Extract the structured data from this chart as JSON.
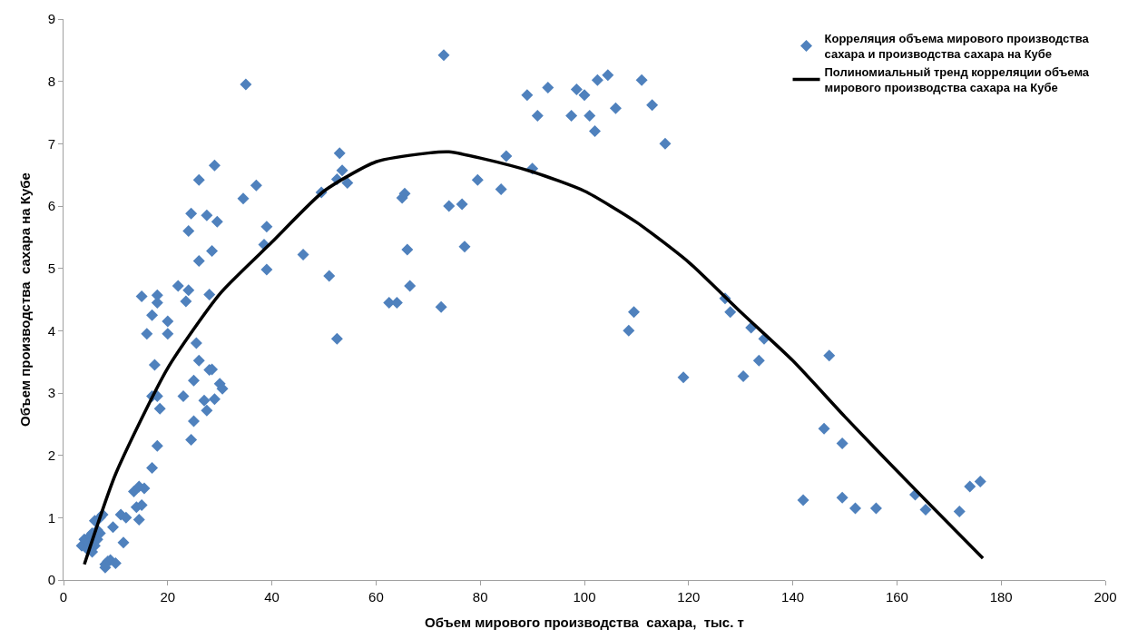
{
  "chart_data": {
    "type": "scatter",
    "xlabel": "Объем мирового производства  сахара,  тыс. т",
    "ylabel": "Объем производства  сахара на Кубе",
    "xlim": [
      0,
      200
    ],
    "xticks": [
      0,
      20,
      40,
      60,
      80,
      100,
      120,
      140,
      160,
      180,
      200
    ],
    "ylim": [
      0,
      9
    ],
    "yticks": [
      0,
      1,
      2,
      3,
      4,
      5,
      6,
      7,
      8,
      9
    ],
    "legend": "top right",
    "marker": "diamond",
    "series": [
      {
        "name": "Корреляция объема мирового производства сахара и производства сахара на Кубе",
        "color": "#4f81bd",
        "x": [
          3.5,
          4,
          4.5,
          5,
          5.5,
          5,
          6,
          6.5,
          6,
          7,
          7.5,
          6.5,
          7,
          5.5,
          8,
          8.5,
          9,
          10,
          8,
          9.5,
          11,
          11.5,
          12,
          13.5,
          14,
          14.5,
          14.5,
          15,
          15.5,
          16,
          15,
          17,
          17,
          17.5,
          18,
          18,
          18.5,
          17,
          18,
          18,
          20,
          20,
          22,
          23,
          23.5,
          24,
          24,
          24.5,
          24.5,
          25,
          25,
          25.5,
          26,
          26,
          26,
          27,
          27.5,
          27.5,
          28,
          28,
          28.5,
          28.5,
          29,
          29,
          29.5,
          30,
          30.5,
          34.5,
          35,
          37,
          38.5,
          39,
          39,
          46,
          49.5,
          51,
          52.5,
          52.5,
          53,
          53.5,
          54.5,
          62.5,
          64,
          65,
          65.5,
          66,
          66.5,
          72.5,
          73,
          74,
          76.5,
          77,
          79.5,
          84,
          85,
          89,
          90,
          91,
          93,
          97.5,
          98.5,
          100,
          101,
          102,
          102.5,
          104.5,
          106,
          111,
          113,
          115.5,
          108.5,
          109.5,
          119,
          127,
          128,
          130.5,
          132,
          133.5,
          134.5,
          142,
          146,
          147,
          149.5,
          149.5,
          152,
          156,
          163.5,
          165.5,
          172,
          174,
          176
        ],
        "values": [
          0.55,
          0.65,
          0.5,
          0.7,
          0.45,
          0.6,
          0.55,
          0.65,
          0.95,
          1.0,
          1.05,
          0.8,
          0.75,
          0.75,
          0.2,
          0.3,
          0.32,
          0.27,
          0.25,
          0.85,
          1.05,
          0.6,
          1.0,
          1.42,
          1.17,
          1.5,
          0.97,
          1.2,
          1.47,
          3.95,
          4.55,
          1.8,
          2.95,
          3.45,
          2.15,
          2.95,
          2.75,
          4.25,
          4.45,
          4.57,
          3.95,
          4.15,
          4.72,
          2.95,
          4.47,
          4.65,
          5.6,
          5.88,
          2.25,
          2.55,
          3.2,
          3.8,
          3.52,
          5.12,
          6.42,
          2.88,
          5.85,
          2.72,
          3.37,
          4.58,
          3.38,
          5.28,
          2.9,
          6.65,
          5.75,
          3.15,
          3.07,
          6.12,
          7.95,
          6.33,
          5.38,
          5.67,
          4.98,
          5.22,
          6.22,
          4.88,
          6.43,
          3.87,
          6.85,
          6.57,
          6.37,
          4.45,
          4.45,
          6.13,
          6.2,
          5.3,
          4.72,
          4.38,
          8.42,
          6.0,
          6.03,
          5.35,
          6.42,
          6.27,
          6.8,
          7.78,
          6.6,
          7.45,
          7.9,
          7.45,
          7.87,
          7.78,
          7.45,
          7.2,
          8.02,
          8.1,
          7.57,
          8.02,
          7.62,
          7.0,
          4.0,
          4.3,
          3.25,
          4.52,
          4.3,
          3.27,
          4.05,
          3.52,
          3.87,
          1.28,
          2.43,
          3.6,
          2.19,
          1.32,
          1.15,
          1.15,
          1.37,
          1.13,
          1.1,
          1.5,
          1.58
        ]
      },
      {
        "name": "Полиномиальный тренд корреляции объема мирового производства сахара на Кубе",
        "color": "#000000",
        "type": "line",
        "marker": "none",
        "x": [
          4,
          10,
          20,
          30,
          40,
          50,
          60,
          70,
          74,
          80,
          90,
          100,
          110,
          120,
          130,
          140,
          150,
          160,
          170,
          176.5
        ],
        "values": [
          0.25,
          1.7,
          3.4,
          4.59,
          5.42,
          6.24,
          6.71,
          6.85,
          6.87,
          6.77,
          6.55,
          6.24,
          5.74,
          5.1,
          4.3,
          3.52,
          2.62,
          1.75,
          0.9,
          0.35
        ]
      }
    ]
  }
}
